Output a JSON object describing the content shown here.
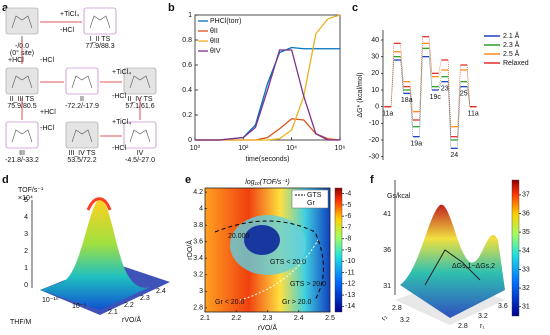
{
  "chart_data": [
    {
      "type": "diagram",
      "panel_label": "a",
      "nodes": [
        {
          "label": "I",
          "energy": "-/0.0",
          "note": "(0° site)"
        },
        {
          "label": "I_II TS",
          "energy": "77.9/88.3"
        },
        {
          "label": "II_III TS",
          "energy": "75.9/80.5"
        },
        {
          "label": "II",
          "energy": "-72.2/-17.9"
        },
        {
          "label": "II_IV TS",
          "energy": "57.1/61.6"
        },
        {
          "label": "III",
          "energy": "-21.8/-33.2"
        },
        {
          "label": "III_IV TS",
          "energy": "53.5/72.2"
        },
        {
          "label": "IV",
          "energy": "-4.5/-27.0"
        }
      ],
      "arrows": [
        "+TiCl₄",
        "-HCl",
        "+HCl",
        "-HCl",
        "+TiCl₄",
        "-HCl",
        "+HCl",
        "-HCl",
        "+TiCl₄",
        "-HCl"
      ]
    },
    {
      "type": "line",
      "panel_label": "b",
      "xlabel": "time(seconds)",
      "xscale": "log",
      "x": [
        1,
        10,
        100,
        316,
        1000,
        3162,
        10000,
        31623,
        100000,
        316228,
        1000000
      ],
      "series": [
        {
          "name": "PHCl(torr)",
          "color": "#0072bd",
          "values": [
            0,
            0,
            0.02,
            0.12,
            0.45,
            0.7,
            0.74,
            0.73,
            0.73,
            0.73,
            0.73
          ]
        },
        {
          "name": "θII",
          "color": "#d95319",
          "values": [
            0,
            0,
            0,
            0,
            0.02,
            0.09,
            0.17,
            0.16,
            0.05,
            0.01,
            0
          ]
        },
        {
          "name": "θIII",
          "color": "#edb120",
          "values": [
            0,
            0,
            0,
            0,
            0,
            0.01,
            0.08,
            0.35,
            0.85,
            0.97,
            1.0
          ]
        },
        {
          "name": "θIV",
          "color": "#7e2f8e",
          "values": [
            0,
            0,
            0.02,
            0.1,
            0.4,
            0.72,
            0.72,
            0.35,
            0.05,
            0,
            0
          ]
        }
      ],
      "xlim": [
        1,
        1000000
      ],
      "xticks": [
        {
          "value": 1,
          "label": "10⁰"
        },
        {
          "value": 100,
          "label": "10²"
        },
        {
          "value": 10000,
          "label": "10⁴"
        },
        {
          "value": 1000000,
          "label": "10⁶"
        }
      ],
      "ylim": [
        0,
        1
      ],
      "yticks": [
        0,
        0.2,
        0.4,
        0.6,
        0.8,
        1
      ]
    },
    {
      "type": "energy",
      "panel_label": "c",
      "ylabel": "ΔG* (kcal/mol)",
      "categories": [
        "11a",
        null,
        "18a",
        "19a",
        null,
        "19c",
        "23",
        "24",
        "25",
        "11a"
      ],
      "series": [
        {
          "name": "2.1 Å",
          "color": "#1f3fbf",
          "values": [
            0,
            28,
            8,
            -18,
            30,
            10,
            15,
            -25,
            12,
            0
          ]
        },
        {
          "name": "2.3 Å",
          "color": "#2ca02c",
          "values": [
            0,
            30,
            10,
            -12,
            35,
            12,
            18,
            -20,
            15,
            0
          ]
        },
        {
          "name": "2.5 Å",
          "color": "#ff8c1a",
          "values": [
            0,
            33,
            15,
            -3,
            38,
            18,
            22,
            -12,
            22,
            0
          ]
        },
        {
          "name": "Relaxed",
          "color": "#e0302a",
          "values": [
            0,
            38,
            12,
            -8,
            42,
            20,
            28,
            -18,
            25,
            0
          ]
        }
      ],
      "ylim": [
        -32,
        46
      ],
      "yticks": [
        -30,
        -20,
        -10,
        0,
        10,
        20,
        30,
        40
      ]
    },
    {
      "type": "surface",
      "panel_label": "d",
      "zlabel": "TOF/s⁻¹",
      "zmultiplier": "×10⁴",
      "zticks": [
        0,
        1,
        2,
        3,
        4,
        5
      ],
      "xlabel": "THF/M",
      "xticks": [
        {
          "value": 1e-10,
          "label": "10⁻¹⁰"
        },
        {
          "value": 1e-05,
          "label": "10⁻⁵"
        }
      ],
      "ylabel": "rVO/Å",
      "yticks": [
        2.1,
        2.2,
        2.3,
        2.4
      ]
    },
    {
      "type": "contour",
      "panel_label": "e",
      "title": "log₁₀(TOF/s⁻¹)",
      "xlabel": "rVO/Å",
      "ylabel": "rOO/Å",
      "xlim": [
        2.1,
        2.5
      ],
      "xticks": [
        2.1,
        2.2,
        2.3,
        2.4,
        2.5
      ],
      "ylim": [
        2.75,
        4.25
      ],
      "yticks": [
        2.8,
        3,
        3.2,
        3.4,
        3.6,
        3.8,
        4,
        4.2
      ],
      "clim": [
        -14.5,
        -3.5
      ],
      "cticks": [
        -4,
        -5,
        -6,
        -7,
        -8,
        -9,
        -10,
        -11,
        -12,
        -13,
        -14
      ],
      "legend": [
        "GTS",
        "Gr"
      ],
      "annotations": [
        "20.000",
        "GTS < 20.0",
        "GTS > 20.0",
        "Gr < 20.0",
        "Gr > 20.0"
      ]
    },
    {
      "type": "surface",
      "panel_label": "f",
      "zlabel": "Gs/kcal",
      "zticks": [
        31,
        36,
        41
      ],
      "annotation": "ΔGs,1−ΔGs,2",
      "xlabel": "r₂",
      "xticks": [
        2.8,
        3.2
      ],
      "ylabel": "r₁",
      "yticks": [
        2.8,
        3.2,
        3.6
      ],
      "clim": [
        30.5,
        37.8
      ],
      "cticks": [
        31,
        32,
        33,
        34,
        35,
        36,
        37
      ]
    }
  ]
}
